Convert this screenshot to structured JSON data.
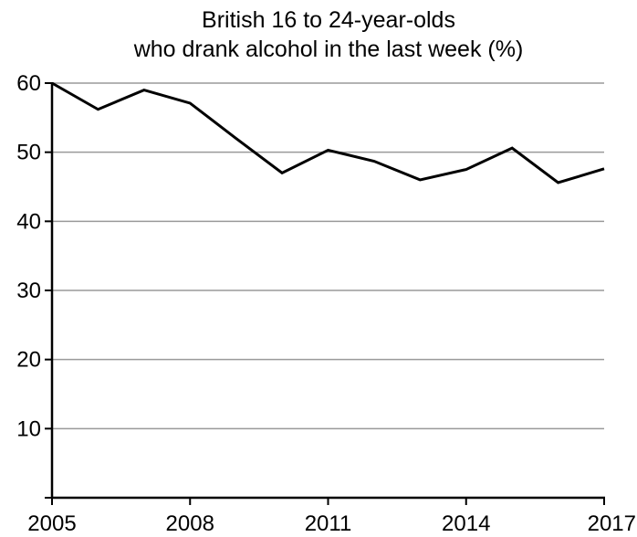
{
  "chart_data": {
    "type": "line",
    "title_lines": [
      "British 16 to 24-year-olds",
      "who drank alcohol in the last week (%)"
    ],
    "xlabel": "",
    "ylabel": "",
    "x": [
      2005,
      2006,
      2007,
      2008,
      2009,
      2010,
      2011,
      2012,
      2013,
      2014,
      2015,
      2016,
      2017
    ],
    "series": [
      {
        "values": [
          60.0,
          56.2,
          59.0,
          57.1,
          52.0,
          47.0,
          50.3,
          48.7,
          46.0,
          47.5,
          50.6,
          45.6,
          47.6
        ]
      }
    ],
    "xlim": [
      2005,
      2017
    ],
    "ylim": [
      0,
      60
    ],
    "x_ticks": [
      "2005",
      "2008",
      "2011",
      "2014",
      "2017"
    ],
    "x_tick_values": [
      2005,
      2008,
      2011,
      2014,
      2017
    ],
    "y_ticks": [
      "10",
      "20",
      "30",
      "40",
      "50",
      "60"
    ],
    "y_tick_values": [
      10,
      20,
      30,
      40,
      50,
      60
    ],
    "grid": "horizontal",
    "legend": "none",
    "colors": {
      "line": "#000000",
      "grid": "#9a9a9a",
      "axis": "#000000",
      "background": "#ffffff"
    }
  }
}
